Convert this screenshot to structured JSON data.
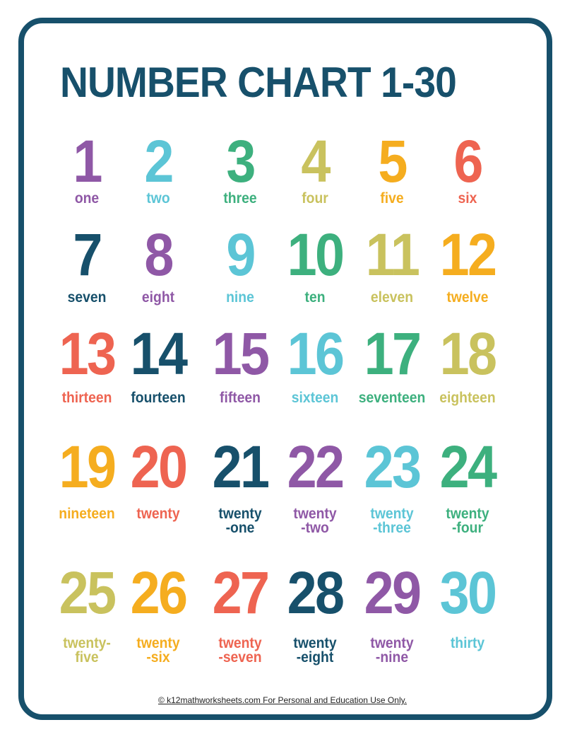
{
  "title": "NUMBER CHART 1-30",
  "footer": "© k12mathworksheets.com For Personal and Education Use Only.",
  "colors": {
    "purple": "#8f58a6",
    "cyan": "#5cc5d6",
    "green": "#3db07e",
    "olive": "#c9c25e",
    "orange": "#f5ad1f",
    "red": "#ee6451",
    "dark": "#17506b"
  },
  "items": [
    {
      "number": "1",
      "lines": [
        "one"
      ],
      "color": "purple"
    },
    {
      "number": "2",
      "lines": [
        "two"
      ],
      "color": "cyan"
    },
    {
      "number": "3",
      "lines": [
        "three"
      ],
      "color": "green"
    },
    {
      "number": "4",
      "lines": [
        "four"
      ],
      "color": "olive"
    },
    {
      "number": "5",
      "lines": [
        "five"
      ],
      "color": "orange"
    },
    {
      "number": "6",
      "lines": [
        "six"
      ],
      "color": "red"
    },
    {
      "number": "7",
      "lines": [
        "seven"
      ],
      "color": "dark"
    },
    {
      "number": "8",
      "lines": [
        "eight"
      ],
      "color": "purple"
    },
    {
      "number": "9",
      "lines": [
        "nine"
      ],
      "color": "cyan"
    },
    {
      "number": "10",
      "lines": [
        "ten"
      ],
      "color": "green"
    },
    {
      "number": "11",
      "lines": [
        "eleven"
      ],
      "color": "olive"
    },
    {
      "number": "12",
      "lines": [
        "twelve"
      ],
      "color": "orange"
    },
    {
      "number": "13",
      "lines": [
        "thirteen"
      ],
      "color": "red"
    },
    {
      "number": "14",
      "lines": [
        "fourteen"
      ],
      "color": "dark"
    },
    {
      "number": "15",
      "lines": [
        "fifteen"
      ],
      "color": "purple"
    },
    {
      "number": "16",
      "lines": [
        "sixteen"
      ],
      "color": "cyan"
    },
    {
      "number": "17",
      "lines": [
        "seventeen"
      ],
      "color": "green"
    },
    {
      "number": "18",
      "lines": [
        "eighteen"
      ],
      "color": "olive"
    },
    {
      "number": "19",
      "lines": [
        "nineteen"
      ],
      "color": "orange"
    },
    {
      "number": "20",
      "lines": [
        "twenty"
      ],
      "color": "red"
    },
    {
      "number": "21",
      "lines": [
        "twenty",
        "-one"
      ],
      "color": "dark"
    },
    {
      "number": "22",
      "lines": [
        "twenty",
        "-two"
      ],
      "color": "purple"
    },
    {
      "number": "23",
      "lines": [
        "twenty",
        "-three"
      ],
      "color": "cyan"
    },
    {
      "number": "24",
      "lines": [
        "twenty",
        "-four"
      ],
      "color": "green"
    },
    {
      "number": "25",
      "lines": [
        "twenty-",
        "five"
      ],
      "color": "olive"
    },
    {
      "number": "26",
      "lines": [
        "twenty",
        "-six"
      ],
      "color": "orange"
    },
    {
      "number": "27",
      "lines": [
        "twenty",
        "-seven"
      ],
      "color": "red"
    },
    {
      "number": "28",
      "lines": [
        "twenty",
        "-eight"
      ],
      "color": "dark"
    },
    {
      "number": "29",
      "lines": [
        "twenty",
        "-nine"
      ],
      "color": "purple"
    },
    {
      "number": "30",
      "lines": [
        "thirty"
      ],
      "color": "cyan"
    }
  ]
}
